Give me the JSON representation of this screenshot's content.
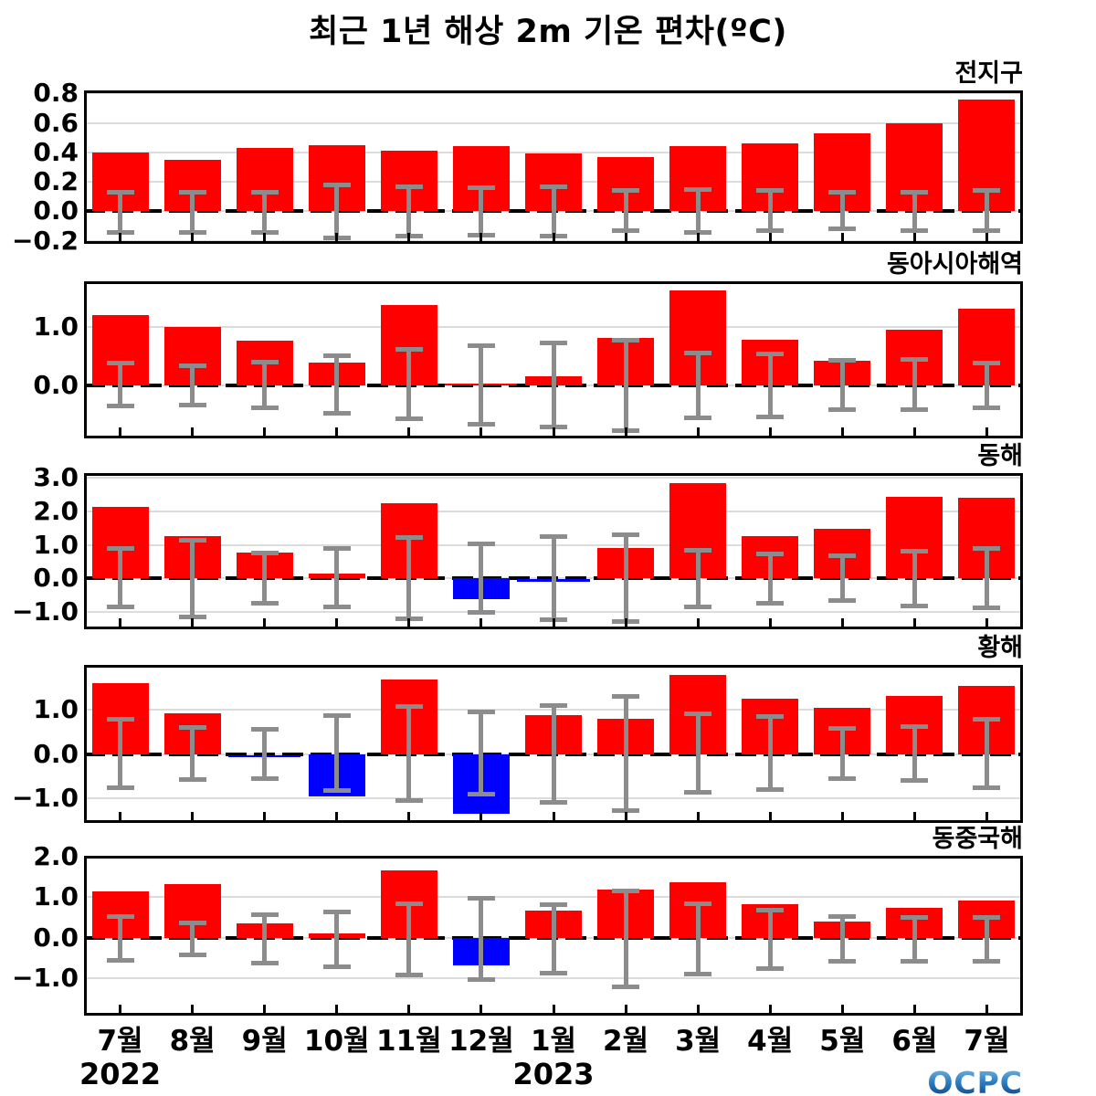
{
  "title": "최근 1년 해상 2m 기온 편차(ºC)",
  "logo_text": "OCPC",
  "colors": {
    "positive_bar": "#ff0000",
    "negative_bar": "#0000ff",
    "error_bar": "#8c8c8c",
    "gridline": "#dcdcdc",
    "zero_line": "#000000",
    "frame": "#000000"
  },
  "x_axis": {
    "months": [
      "7월",
      "8월",
      "9월",
      "10월",
      "11월",
      "12월",
      "1월",
      "2월",
      "3월",
      "4월",
      "5월",
      "6월",
      "7월"
    ],
    "year_labels": [
      {
        "text": "2022",
        "slot_index": 0
      },
      {
        "text": "2023",
        "slot_index": 6
      }
    ]
  },
  "chart_data": [
    {
      "type": "bar",
      "region": "전지구",
      "categories": [
        "7월",
        "8월",
        "9월",
        "10월",
        "11월",
        "12월",
        "1월",
        "2월",
        "3월",
        "4월",
        "5월",
        "6월",
        "7월"
      ],
      "values": [
        0.4,
        0.35,
        0.43,
        0.45,
        0.41,
        0.44,
        0.39,
        0.37,
        0.44,
        0.46,
        0.53,
        0.6,
        0.76
      ],
      "error_upper": [
        0.13,
        0.13,
        0.13,
        0.18,
        0.17,
        0.16,
        0.17,
        0.14,
        0.15,
        0.14,
        0.13,
        0.13,
        0.14
      ],
      "error_lower": [
        -0.14,
        -0.14,
        -0.14,
        -0.18,
        -0.17,
        -0.16,
        -0.17,
        -0.13,
        -0.14,
        -0.13,
        -0.12,
        -0.13,
        -0.13
      ],
      "ylim": [
        -0.22,
        0.82
      ],
      "yticks": [
        0.8,
        0.6,
        0.4,
        0.2,
        0.0,
        -0.2
      ]
    },
    {
      "type": "bar",
      "region": "동아시아해역",
      "categories": [
        "7월",
        "8월",
        "9월",
        "10월",
        "11월",
        "12월",
        "1월",
        "2월",
        "3월",
        "4월",
        "5월",
        "6월",
        "7월"
      ],
      "values": [
        1.2,
        1.0,
        0.77,
        0.39,
        1.38,
        0.03,
        0.15,
        0.81,
        1.63,
        0.78,
        0.42,
        0.95,
        1.31
      ],
      "error_upper": [
        0.38,
        0.34,
        0.39,
        0.5,
        0.61,
        0.67,
        0.72,
        0.77,
        0.55,
        0.53,
        0.42,
        0.45,
        0.38
      ],
      "error_lower": [
        -0.36,
        -0.34,
        -0.39,
        -0.48,
        -0.58,
        -0.67,
        -0.72,
        -0.77,
        -0.56,
        -0.55,
        -0.41,
        -0.42,
        -0.38
      ],
      "ylim": [
        -0.91,
        1.78
      ],
      "yticks": [
        1.0,
        0.0
      ]
    },
    {
      "type": "bar",
      "region": "동해",
      "categories": [
        "7월",
        "8월",
        "9월",
        "10월",
        "11월",
        "12월",
        "1월",
        "2월",
        "3월",
        "4월",
        "5월",
        "6월",
        "7월"
      ],
      "values": [
        2.15,
        1.25,
        0.76,
        0.14,
        2.24,
        -0.63,
        -0.04,
        0.9,
        2.85,
        1.25,
        1.48,
        2.45,
        2.42
      ],
      "error_upper": [
        0.9,
        1.15,
        0.75,
        0.88,
        1.22,
        1.03,
        1.25,
        1.3,
        0.85,
        0.74,
        0.66,
        0.82,
        0.88
      ],
      "error_lower": [
        -0.85,
        -1.15,
        -0.75,
        -0.85,
        -1.22,
        -1.03,
        -1.25,
        -1.3,
        -0.85,
        -0.74,
        -0.66,
        -0.82,
        -0.88
      ],
      "ylim": [
        -1.53,
        3.15
      ],
      "yticks": [
        3.0,
        2.0,
        1.0,
        0.0,
        -1.0
      ]
    },
    {
      "type": "bar",
      "region": "황해",
      "categories": [
        "7월",
        "8월",
        "9월",
        "10월",
        "11월",
        "12월",
        "1월",
        "2월",
        "3월",
        "4월",
        "5월",
        "6월",
        "7월"
      ],
      "values": [
        1.61,
        0.93,
        -0.05,
        -0.95,
        1.7,
        -1.35,
        0.89,
        0.8,
        1.8,
        1.26,
        1.05,
        1.32,
        1.55
      ],
      "error_upper": [
        0.8,
        0.6,
        0.56,
        0.87,
        1.09,
        0.95,
        1.11,
        1.3,
        0.91,
        0.85,
        0.58,
        0.62,
        0.8
      ],
      "error_lower": [
        -0.76,
        -0.58,
        -0.54,
        -0.82,
        -1.05,
        -0.91,
        -1.09,
        -1.28,
        -0.85,
        -0.8,
        -0.55,
        -0.6,
        -0.76
      ],
      "ylim": [
        -1.55,
        2.02
      ],
      "yticks": [
        1.0,
        0.0,
        -1.0
      ]
    },
    {
      "type": "bar",
      "region": "동중국해",
      "categories": [
        "7월",
        "8월",
        "9월",
        "10월",
        "11월",
        "12월",
        "1월",
        "2월",
        "3월",
        "4월",
        "5월",
        "6월",
        "7월"
      ],
      "values": [
        1.15,
        1.32,
        0.35,
        0.12,
        1.65,
        -0.68,
        0.68,
        1.18,
        1.36,
        0.84,
        0.4,
        0.73,
        0.91
      ],
      "error_upper": [
        0.52,
        0.38,
        0.57,
        0.64,
        0.84,
        0.98,
        0.82,
        1.16,
        0.84,
        0.68,
        0.52,
        0.5,
        0.5
      ],
      "error_lower": [
        -0.55,
        -0.42,
        -0.61,
        -0.7,
        -0.91,
        -1.02,
        -0.86,
        -1.2,
        -0.89,
        -0.75,
        -0.57,
        -0.57,
        -0.57
      ],
      "ylim": [
        -1.91,
        2.02
      ],
      "yticks": [
        2.0,
        1.0,
        0.0,
        -1.0
      ]
    }
  ]
}
